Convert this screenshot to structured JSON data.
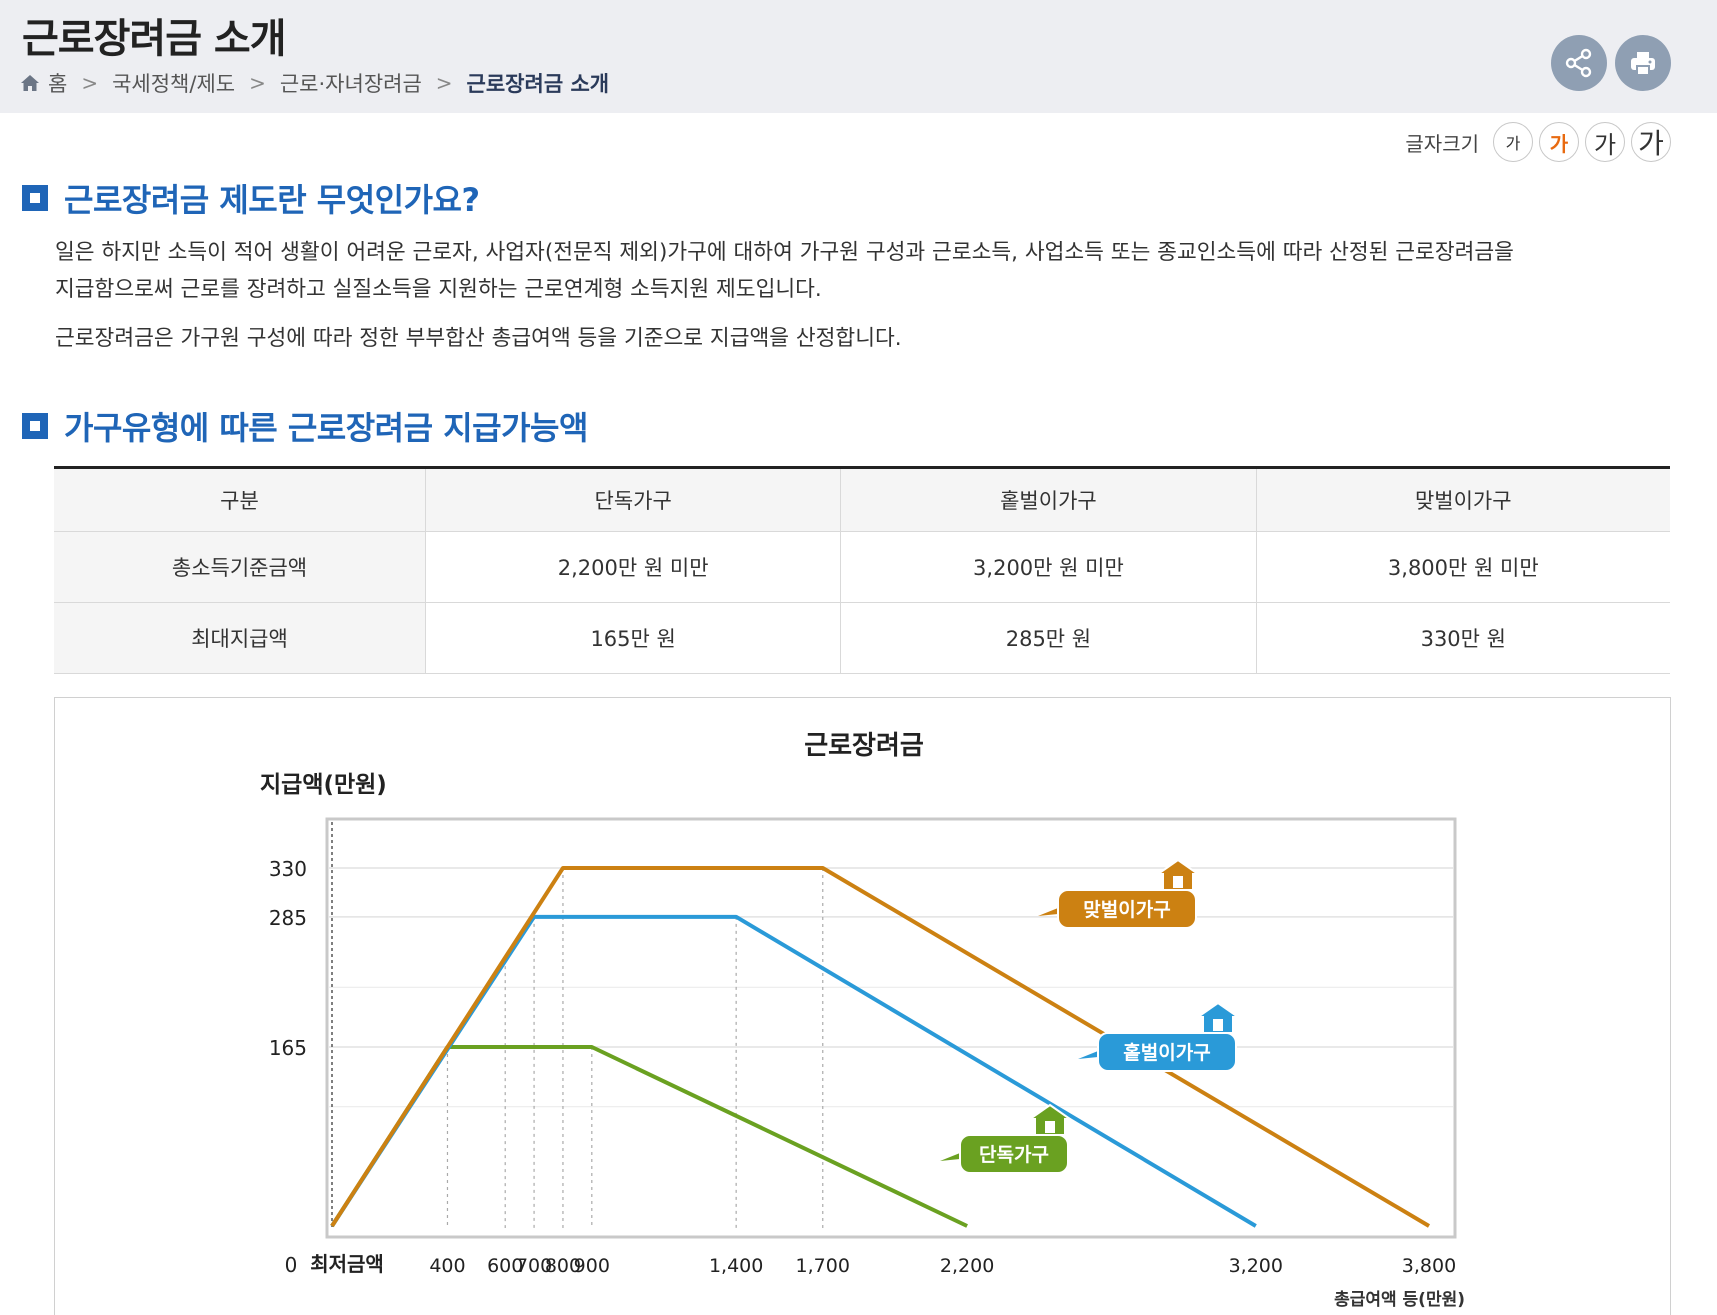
{
  "header": {
    "title": "근로장려금 소개",
    "breadcrumb": [
      "홈",
      "국세정책/제도",
      "근로·자녀장려금",
      "근로장려금 소개"
    ]
  },
  "actions": {
    "share_icon": "share-icon",
    "print_icon": "print-icon"
  },
  "font_size": {
    "label": "글자크기",
    "options": [
      "가",
      "가",
      "가",
      "가"
    ]
  },
  "section1": {
    "title": "근로장려금 제도란 무엇인가요?",
    "para1_line1": "일은 하지만 소득이 적어 생활이 어려운 근로자, 사업자(전문직 제외)가구에 대하여 가구원 구성과 근로소득, 사업소득 또는 종교인소득에 따라 산정된 근로장려금을",
    "para1_line2": "지급함으로써 근로를 장려하고 실질소득을 지원하는 근로연계형 소득지원 제도입니다.",
    "para2": "근로장려금은 가구원 구성에 따라 정한 부부합산 총급여액 등을 기준으로 지급액을 산정합니다."
  },
  "section2": {
    "title": "가구유형에 따른 근로장려금 지급가능액"
  },
  "table": {
    "headers": [
      "구분",
      "단독가구",
      "홑벌이가구",
      "맞벌이가구"
    ],
    "rows": [
      {
        "label": "총소득기준금액",
        "values": [
          "2,200만 원 미만",
          "3,200만 원 미만",
          "3,800만 원 미만"
        ]
      },
      {
        "label": "최대지급액",
        "values": [
          "165만 원",
          "285만 원",
          "330만 원"
        ]
      }
    ]
  },
  "chart_data": {
    "type": "line",
    "title": "근로장려금",
    "ylabel": "지급액(만원)",
    "xlabel": "총급여액 등(만원)",
    "x_zero_label": "최저금액",
    "origin_label": "0",
    "xlim": [
      0,
      3800
    ],
    "ylim": [
      0,
      330
    ],
    "x_ticks": [
      400,
      600,
      700,
      800,
      900,
      1400,
      1700,
      2200,
      3200,
      3800
    ],
    "x_tick_labels": [
      "400",
      "600",
      "700",
      "800",
      "900",
      "1,400",
      "1,700",
      "2,200",
      "3,200",
      "3,800"
    ],
    "y_ticks": [
      165,
      285,
      330
    ],
    "y_tick_labels": [
      "165",
      "285",
      "330"
    ],
    "grid": true,
    "series": [
      {
        "name": "단독가구",
        "color": "#6aa121",
        "x": [
          0,
          400,
          900,
          2200
        ],
        "y": [
          0,
          165,
          165,
          0
        ]
      },
      {
        "name": "홑벌이가구",
        "color": "#2a9ad8",
        "x": [
          0,
          700,
          1400,
          3200
        ],
        "y": [
          0,
          285,
          285,
          0
        ]
      },
      {
        "name": "맞벌이가구",
        "color": "#cc8112",
        "x": [
          0,
          800,
          1700,
          3800
        ],
        "y": [
          0,
          330,
          330,
          0
        ]
      }
    ]
  }
}
